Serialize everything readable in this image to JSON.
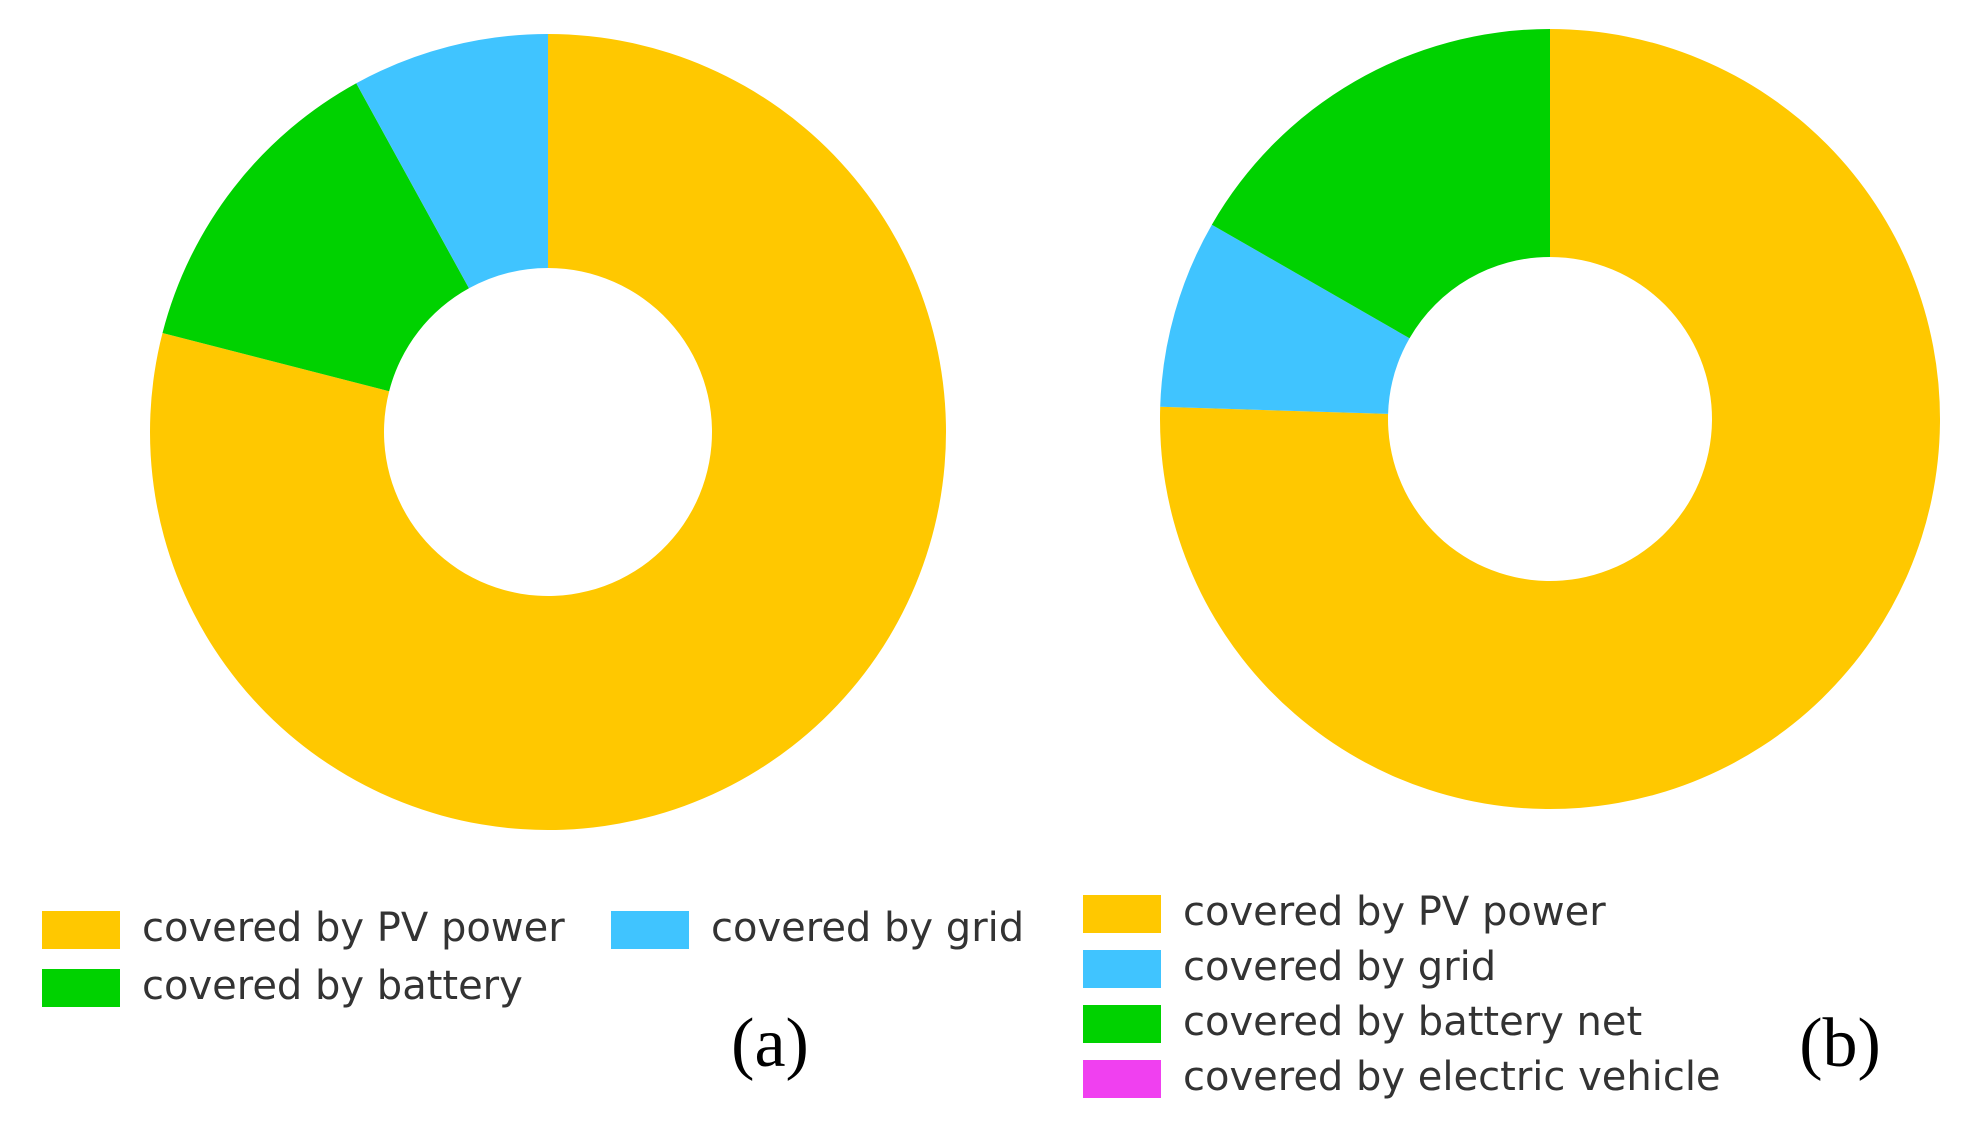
{
  "chart_data": [
    {
      "type": "pie",
      "donut": true,
      "label": "(a)",
      "categories": [
        "covered by PV power",
        "covered by battery",
        "covered by grid"
      ],
      "values": [
        79,
        13,
        8
      ],
      "colors": [
        "#ffc800",
        "#00d200",
        "#40c4ff"
      ]
    },
    {
      "type": "pie",
      "donut": true,
      "label": "(b)",
      "categories": [
        "covered by PV power",
        "covered by grid",
        "covered by battery net",
        "covered by electric vehicle"
      ],
      "values": [
        75.5,
        7.8,
        16.7,
        0
      ],
      "colors": [
        "#ffc800",
        "#40c4ff",
        "#00d200",
        "#f040f0"
      ]
    }
  ]
}
